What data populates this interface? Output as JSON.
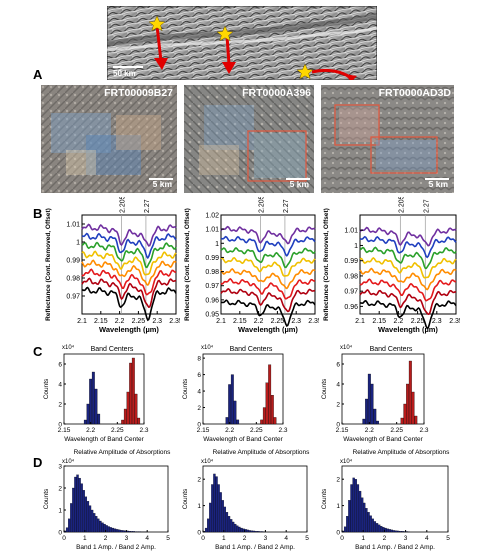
{
  "panel_letters": {
    "a": "A",
    "b": "B",
    "c": "C",
    "d": "D"
  },
  "context_map": {
    "scale_label": "50 km"
  },
  "images": [
    {
      "id": "FRT00009B27",
      "scale": "5 km"
    },
    {
      "id": "FRT0000A396",
      "scale": "5 km"
    },
    {
      "id": "FRT0000AD3D",
      "scale": "5 km"
    }
  ],
  "colors": {
    "spectra": [
      "#7030a0",
      "#1f3fbf",
      "#2aa02a",
      "#f0c000",
      "#ff8c00",
      "#e41a1c",
      "#b00010",
      "#000000"
    ],
    "blue_hist": "#1a237e",
    "red_hist": "#b71c1c",
    "star": "#ffd700",
    "arrow": "#e00000"
  },
  "chart_data": [
    {
      "type": "line",
      "panel": "B",
      "xlabel": "Wavelength (µm)",
      "ylabel": "Reflectance (Cont. Removed, Offset)",
      "xlim": [
        2.1,
        2.35
      ],
      "xticks": [
        "2.1",
        "2.15",
        "2.2",
        "2.25",
        "2.3",
        "2.35"
      ],
      "ylim": [
        0.96,
        1.015
      ],
      "yticks": [
        "0.97",
        "0.98",
        "0.99",
        "1",
        "1.01"
      ],
      "markers": [
        "2.205",
        "2.27"
      ],
      "series": [
        {
          "offset": 1.008
        },
        {
          "offset": 1.003
        },
        {
          "offset": 0.998
        },
        {
          "offset": 0.993
        },
        {
          "offset": 0.988
        },
        {
          "offset": 0.983
        },
        {
          "offset": 0.978
        },
        {
          "offset": 0.973
        }
      ]
    },
    {
      "type": "line",
      "panel": "B",
      "xlabel": "Wavelength (µm)",
      "ylabel": "Reflectance (Cont. Removed, Offset)",
      "xlim": [
        2.1,
        2.35
      ],
      "xticks": [
        "2.1",
        "2.15",
        "2.2",
        "2.25",
        "2.3",
        "2.35"
      ],
      "ylim": [
        0.95,
        1.02
      ],
      "yticks": [
        "0.95",
        "0.96",
        "0.97",
        "0.98",
        "0.99",
        "1",
        "1.01",
        "1.02"
      ],
      "markers": [
        "2.205",
        "2.27"
      ],
      "series": [
        {
          "offset": 1.01
        },
        {
          "offset": 1.003
        },
        {
          "offset": 0.995
        },
        {
          "offset": 0.988
        },
        {
          "offset": 0.98
        },
        {
          "offset": 0.973
        },
        {
          "offset": 0.966
        },
        {
          "offset": 0.958
        }
      ]
    },
    {
      "type": "line",
      "panel": "B",
      "xlabel": "Wavelength (µm)",
      "ylabel": "Reflectance (Cont. Removed, Offset)",
      "xlim": [
        2.1,
        2.35
      ],
      "xticks": [
        "2.1",
        "2.15",
        "2.2",
        "2.25",
        "2.3",
        "2.35"
      ],
      "ylim": [
        0.955,
        1.02
      ],
      "yticks": [
        "0.96",
        "0.97",
        "0.98",
        "0.99",
        "1",
        "1.01"
      ],
      "markers": [
        "2.205",
        "2.27"
      ],
      "series": [
        {
          "offset": 1.01
        },
        {
          "offset": 1.004
        },
        {
          "offset": 0.997
        },
        {
          "offset": 0.99
        },
        {
          "offset": 0.983
        },
        {
          "offset": 0.976
        },
        {
          "offset": 0.969
        },
        {
          "offset": 0.962
        }
      ]
    },
    {
      "type": "bar",
      "panel": "C",
      "title": "Band Centers",
      "xlabel": "Wavelength of Band Center",
      "ylabel": "Counts",
      "exp": "x10⁴",
      "xlim": [
        2.15,
        2.3
      ],
      "xticks": [
        "2.15",
        "2.2",
        "2.25",
        "2.3"
      ],
      "yticks": [
        "0",
        "2",
        "4",
        "6"
      ],
      "ymax": 7,
      "blue": [
        {
          "x": 2.19,
          "v": 0.4
        },
        {
          "x": 2.195,
          "v": 2.0
        },
        {
          "x": 2.2,
          "v": 4.5
        },
        {
          "x": 2.205,
          "v": 5.2
        },
        {
          "x": 2.21,
          "v": 3.5
        },
        {
          "x": 2.215,
          "v": 1.0
        }
      ],
      "red": [
        {
          "x": 2.26,
          "v": 0.4
        },
        {
          "x": 2.265,
          "v": 1.5
        },
        {
          "x": 2.27,
          "v": 3.2
        },
        {
          "x": 2.275,
          "v": 6.1
        },
        {
          "x": 2.28,
          "v": 6.6
        },
        {
          "x": 2.285,
          "v": 3.0
        },
        {
          "x": 2.29,
          "v": 0.6
        }
      ]
    },
    {
      "type": "bar",
      "panel": "C",
      "title": "Band Centers",
      "xlabel": "Wavelength of Band Center",
      "ylabel": "Counts",
      "exp": "x10⁴",
      "xlim": [
        2.15,
        2.3
      ],
      "xticks": [
        "2.15",
        "2.2",
        "2.25",
        "2.3"
      ],
      "yticks": [
        "0",
        "2",
        "4",
        "6",
        "8"
      ],
      "ymax": 8.5,
      "blue": [
        {
          "x": 2.195,
          "v": 0.8
        },
        {
          "x": 2.2,
          "v": 4.8
        },
        {
          "x": 2.205,
          "v": 6.0
        },
        {
          "x": 2.21,
          "v": 2.8
        },
        {
          "x": 2.215,
          "v": 0.5
        }
      ],
      "red": [
        {
          "x": 2.26,
          "v": 0.5
        },
        {
          "x": 2.265,
          "v": 2.0
        },
        {
          "x": 2.27,
          "v": 5.0
        },
        {
          "x": 2.275,
          "v": 7.2
        },
        {
          "x": 2.28,
          "v": 3.5
        },
        {
          "x": 2.285,
          "v": 0.8
        }
      ]
    },
    {
      "type": "bar",
      "panel": "C",
      "title": "Band Centers",
      "xlabel": "Wavelength of Band Center",
      "ylabel": "Counts",
      "exp": "x10⁴",
      "xlim": [
        2.15,
        2.3
      ],
      "xticks": [
        "2.15",
        "2.2",
        "2.25",
        "2.3"
      ],
      "yticks": [
        "0",
        "2",
        "4",
        "6"
      ],
      "ymax": 7,
      "blue": [
        {
          "x": 2.19,
          "v": 0.5
        },
        {
          "x": 2.195,
          "v": 2.5
        },
        {
          "x": 2.2,
          "v": 5.0
        },
        {
          "x": 2.205,
          "v": 4.0
        },
        {
          "x": 2.21,
          "v": 1.5
        },
        {
          "x": 2.215,
          "v": 0.3
        }
      ],
      "red": [
        {
          "x": 2.26,
          "v": 0.6
        },
        {
          "x": 2.265,
          "v": 2.0
        },
        {
          "x": 2.27,
          "v": 4.0
        },
        {
          "x": 2.275,
          "v": 6.3
        },
        {
          "x": 2.28,
          "v": 3.2
        },
        {
          "x": 2.285,
          "v": 0.8
        }
      ]
    },
    {
      "type": "bar",
      "panel": "D",
      "title": "Relative Amplitude of Absorptions",
      "xlabel": "Band 1 Amp. / Band 2 Amp.",
      "ylabel": "Counts",
      "exp": "x10⁴",
      "xlim": [
        0,
        5
      ],
      "xticks": [
        "0",
        "1",
        "2",
        "3",
        "4",
        "5"
      ],
      "yticks": [
        "0",
        "1",
        "2",
        "3"
      ],
      "ymax": 3,
      "binwidth": 0.1,
      "values": [
        0.05,
        0.2,
        0.6,
        1.3,
        2.0,
        2.5,
        2.6,
        2.45,
        2.2,
        1.9,
        1.6,
        1.4,
        1.2,
        1.0,
        0.85,
        0.72,
        0.6,
        0.5,
        0.42,
        0.36,
        0.3,
        0.25,
        0.21,
        0.18,
        0.15,
        0.12,
        0.1,
        0.08,
        0.07,
        0.06,
        0.05,
        0.04,
        0.03,
        0.03,
        0.02,
        0.02,
        0.02,
        0.01,
        0.01,
        0.01
      ]
    },
    {
      "type": "bar",
      "panel": "D",
      "title": "Relative Amplitude of Absorptions",
      "xlabel": "Band 1 Amp. / Band 2 Amp.",
      "ylabel": "Counts",
      "exp": "x10⁴",
      "xlim": [
        0,
        5
      ],
      "xticks": [
        "0",
        "1",
        "2",
        "3",
        "4",
        "5"
      ],
      "yticks": [
        "0",
        "1",
        "2"
      ],
      "ymax": 2.5,
      "binwidth": 0.1,
      "values": [
        0.03,
        0.15,
        0.5,
        1.1,
        1.8,
        2.2,
        2.1,
        1.8,
        1.5,
        1.2,
        0.95,
        0.75,
        0.6,
        0.48,
        0.38,
        0.3,
        0.24,
        0.19,
        0.15,
        0.12,
        0.1,
        0.08,
        0.06,
        0.05,
        0.04,
        0.03,
        0.03,
        0.02,
        0.02,
        0.01
      ]
    },
    {
      "type": "bar",
      "panel": "D",
      "title": "Relative Amplitude of Absorptions",
      "xlabel": "Band 1 Amp. / Band 2 Amp.",
      "ylabel": "Counts",
      "exp": "x10⁴",
      "xlim": [
        0,
        5
      ],
      "xticks": [
        "0",
        "1",
        "2",
        "3",
        "4",
        "5"
      ],
      "yticks": [
        "0",
        "1",
        "2"
      ],
      "ymax": 2.5,
      "binwidth": 0.1,
      "values": [
        0.04,
        0.2,
        0.6,
        1.2,
        1.8,
        2.05,
        2.0,
        1.8,
        1.55,
        1.3,
        1.1,
        0.9,
        0.75,
        0.62,
        0.5,
        0.4,
        0.33,
        0.27,
        0.22,
        0.18,
        0.15,
        0.12,
        0.1,
        0.08,
        0.06,
        0.05,
        0.04,
        0.03,
        0.03,
        0.02,
        0.02,
        0.01
      ]
    }
  ]
}
